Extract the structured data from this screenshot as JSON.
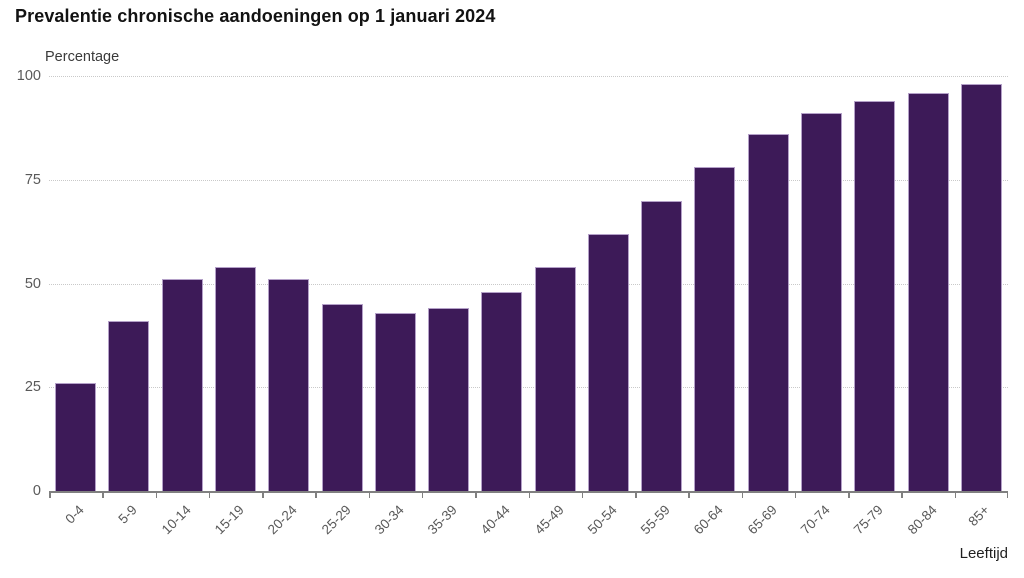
{
  "chart_data": {
    "type": "bar",
    "title": "Prevalentie chronische aandoeningen op 1 januari 2024",
    "ylabel": "Percentage",
    "xlabel": "Leeftijd",
    "categories": [
      "0-4",
      "5-9",
      "10-14",
      "15-19",
      "20-24",
      "25-29",
      "30-34",
      "35-39",
      "40-44",
      "45-49",
      "50-54",
      "55-59",
      "60-64",
      "65-69",
      "70-74",
      "75-79",
      "80-84",
      "85+"
    ],
    "values": [
      26,
      41,
      51,
      54,
      51,
      45,
      43,
      44,
      48,
      54,
      62,
      70,
      78,
      86,
      91,
      94,
      96,
      98
    ],
    "ylim": [
      0,
      100
    ],
    "yticks": [
      0,
      25,
      50,
      75,
      100
    ],
    "grid": "horizontal-dotted",
    "legend": "none",
    "colors": {
      "bar_fill": "#3d1a58",
      "bar_stroke": "#b4a0c8",
      "gridline": "#c9c9c9",
      "axis": "#808080",
      "tick_label": "#595959",
      "title": "#121212",
      "background": "#ffffff"
    }
  }
}
